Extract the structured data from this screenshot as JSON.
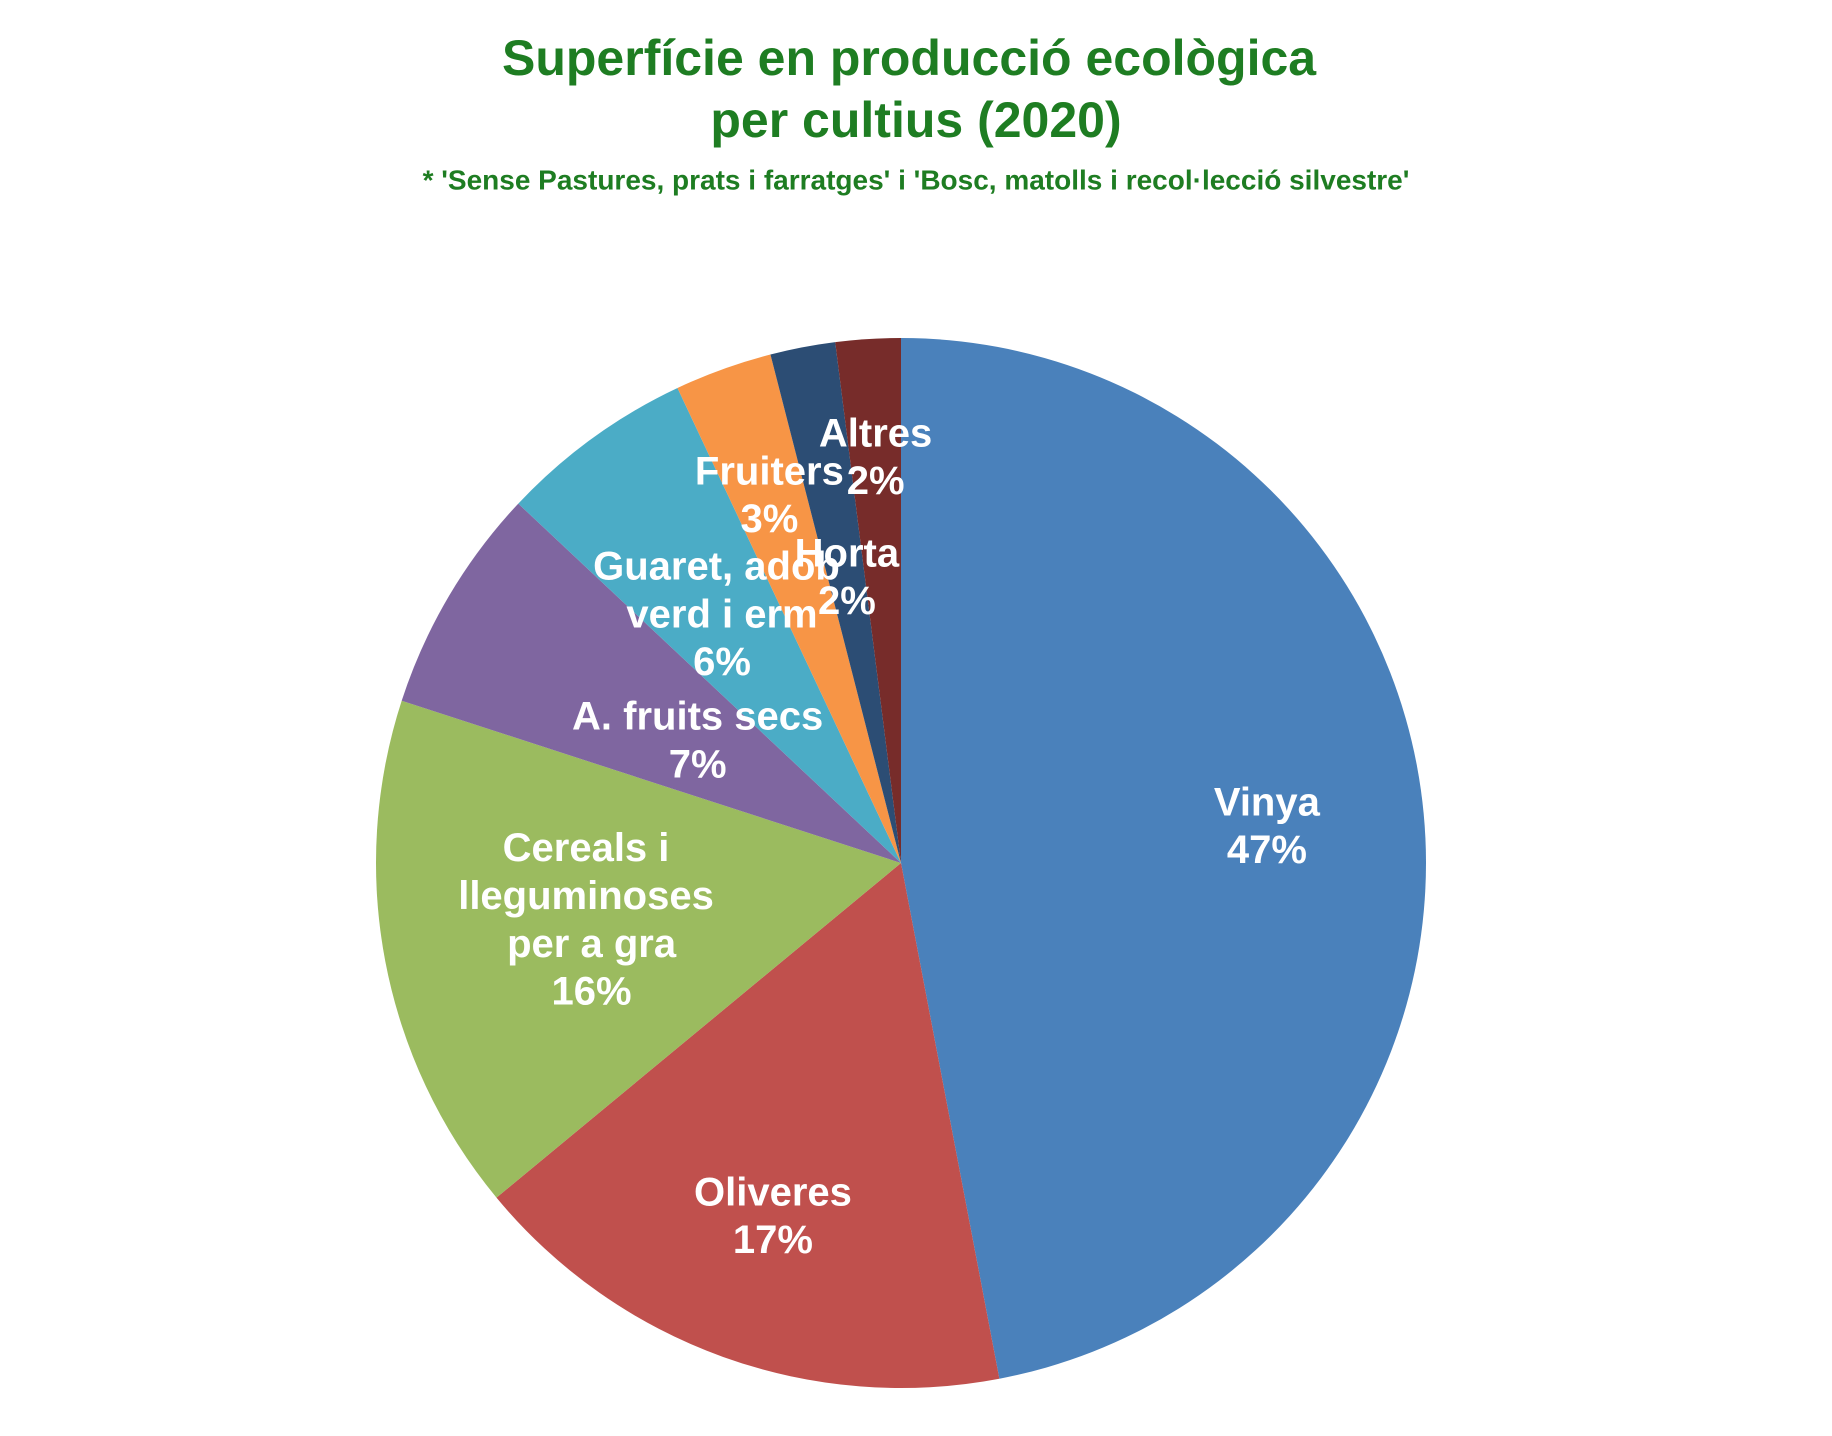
{
  "chart_data": {
    "type": "pie",
    "title": "Superfície en producció ecològica per cultius (2020)",
    "subtitle": "* 'Sense Pastures, prats i farratges' i 'Bosc, matolls i recol·lecció silvestre'",
    "categories": [
      "Vinya",
      "Oliveres",
      "Cereals i lleguminoses per a gra",
      "A. fruits secs",
      "Guaret, adob verd i erm",
      "Fruiters",
      "Horta",
      "Altres"
    ],
    "values": [
      47,
      17,
      16,
      7,
      6,
      3,
      2,
      2
    ],
    "value_labels": [
      "47%",
      "17%",
      "16%",
      "7%",
      "6%",
      "3%",
      "2%",
      "2%"
    ],
    "colors": [
      "#4a81bb",
      "#c0504d",
      "#9bbb5f",
      "#7f66a0",
      "#4bacc6",
      "#f79546",
      "#2c4d74",
      "#772c2a"
    ]
  }
}
